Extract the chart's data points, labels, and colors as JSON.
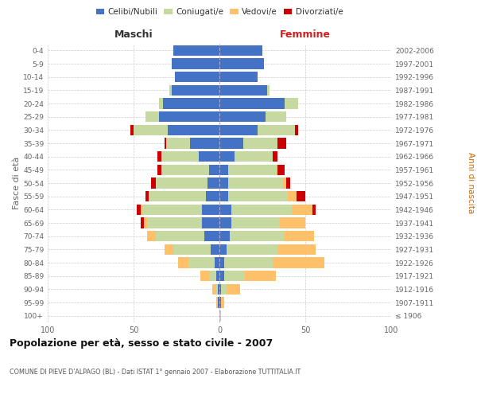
{
  "age_groups": [
    "100+",
    "95-99",
    "90-94",
    "85-89",
    "80-84",
    "75-79",
    "70-74",
    "65-69",
    "60-64",
    "55-59",
    "50-54",
    "45-49",
    "40-44",
    "35-39",
    "30-34",
    "25-29",
    "20-24",
    "15-19",
    "10-14",
    "5-9",
    "0-4"
  ],
  "birth_years": [
    "≤ 1906",
    "1907-1911",
    "1912-1916",
    "1917-1921",
    "1922-1926",
    "1927-1931",
    "1932-1936",
    "1937-1941",
    "1942-1946",
    "1947-1951",
    "1952-1956",
    "1957-1961",
    "1962-1966",
    "1967-1971",
    "1972-1976",
    "1977-1981",
    "1982-1986",
    "1987-1991",
    "1992-1996",
    "1997-2001",
    "2002-2006"
  ],
  "colors": {
    "celibi": "#4472c4",
    "coniugati": "#c5d9a0",
    "vedovi": "#ffc06a",
    "divorziati": "#cc0000"
  },
  "maschi": {
    "celibi": [
      0,
      1,
      1,
      2,
      3,
      5,
      9,
      10,
      10,
      8,
      7,
      6,
      12,
      17,
      30,
      35,
      33,
      28,
      26,
      28,
      27
    ],
    "coniugati": [
      0,
      0,
      1,
      4,
      15,
      22,
      28,
      32,
      35,
      33,
      30,
      28,
      22,
      14,
      20,
      8,
      2,
      1,
      0,
      0,
      0
    ],
    "vedovi": [
      0,
      1,
      2,
      5,
      6,
      5,
      5,
      2,
      1,
      0,
      0,
      0,
      0,
      0,
      0,
      0,
      0,
      0,
      0,
      0,
      0
    ],
    "divorziati": [
      0,
      0,
      0,
      0,
      0,
      0,
      0,
      2,
      2,
      2,
      3,
      2,
      2,
      1,
      2,
      0,
      0,
      0,
      0,
      0,
      0
    ]
  },
  "femmine": {
    "celibi": [
      0,
      1,
      1,
      3,
      3,
      4,
      6,
      7,
      7,
      5,
      5,
      5,
      9,
      14,
      22,
      27,
      38,
      28,
      22,
      26,
      25
    ],
    "coniugati": [
      0,
      0,
      3,
      12,
      28,
      30,
      32,
      28,
      35,
      35,
      32,
      28,
      22,
      20,
      22,
      12,
      8,
      1,
      0,
      0,
      0
    ],
    "vedovi": [
      1,
      2,
      8,
      18,
      30,
      22,
      17,
      15,
      12,
      5,
      2,
      1,
      0,
      0,
      0,
      0,
      0,
      0,
      0,
      0,
      0
    ],
    "divorziati": [
      0,
      0,
      0,
      0,
      0,
      0,
      0,
      0,
      2,
      5,
      2,
      4,
      3,
      5,
      2,
      0,
      0,
      0,
      0,
      0,
      0
    ]
  },
  "xlim": 100,
  "title": "Popolazione per età, sesso e stato civile - 2007",
  "subtitle": "COMUNE DI PIEVE D'ALPAGO (BL) - Dati ISTAT 1° gennaio 2007 - Elaborazione TUTTITALIA.IT",
  "ylabel_left": "Fasce di età",
  "ylabel_right": "Anni di nascita",
  "header_left": "Maschi",
  "header_right": "Femmine",
  "bg_color": "#ffffff",
  "grid_color": "#cccccc",
  "bar_height": 0.8
}
